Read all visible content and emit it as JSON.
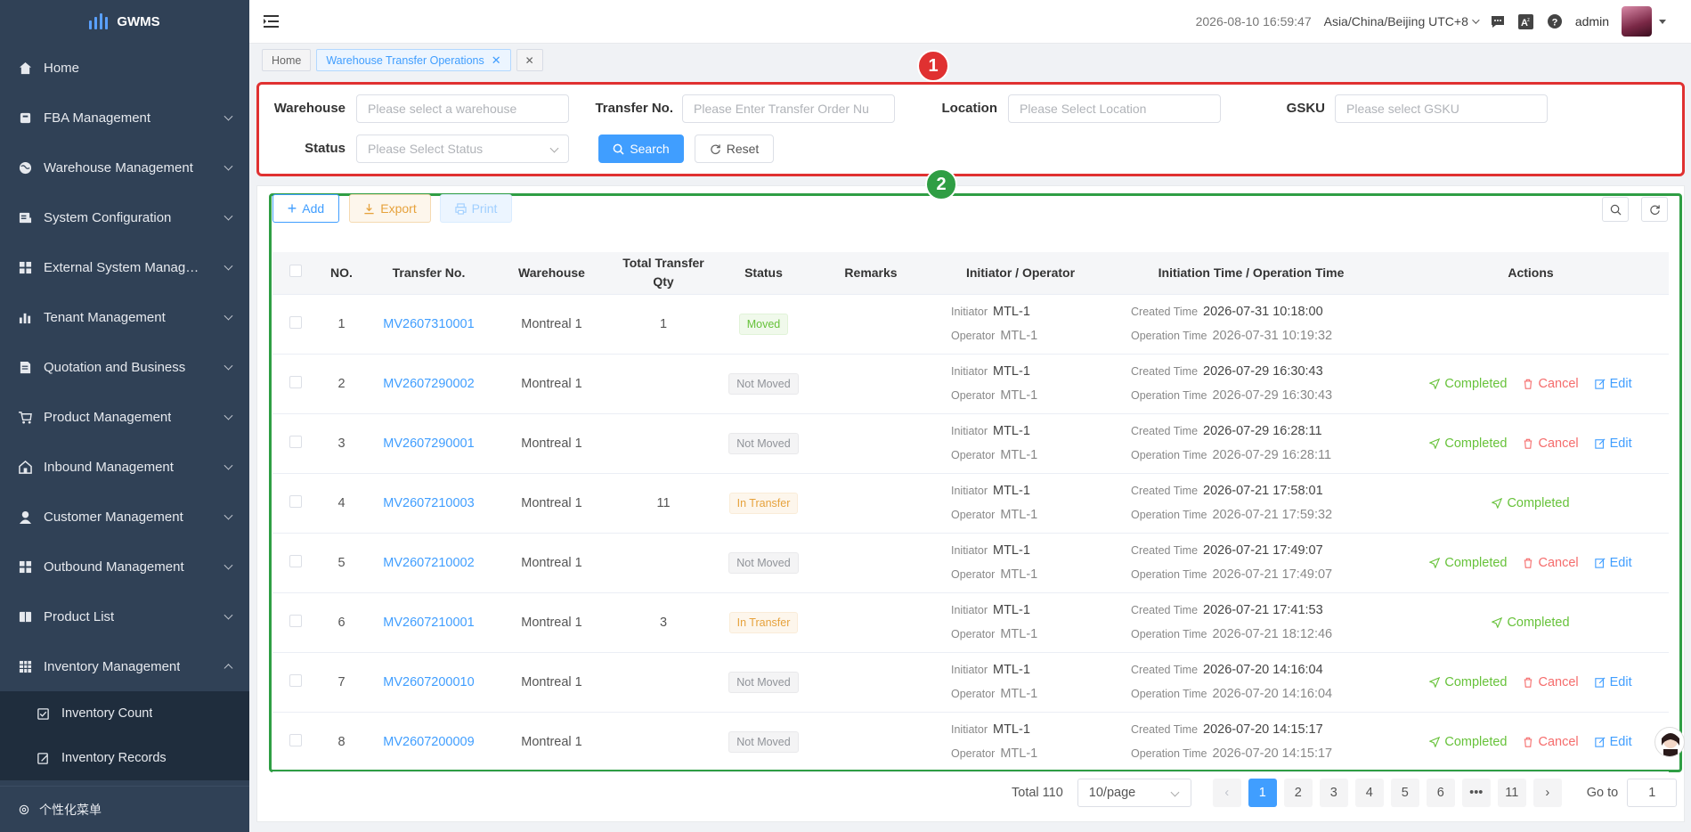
{
  "app": {
    "name": "GWMS"
  },
  "sidebar": {
    "items": [
      {
        "label": "Home",
        "icon": "home-icon",
        "expandable": false
      },
      {
        "label": "FBA Management",
        "icon": "fba-icon",
        "expandable": true
      },
      {
        "label": "Warehouse Management",
        "icon": "globe-icon",
        "expandable": true
      },
      {
        "label": "System Configuration",
        "icon": "config-icon",
        "expandable": true
      },
      {
        "label": "External System Manage...",
        "icon": "grid-icon",
        "expandable": true
      },
      {
        "label": "Tenant Management",
        "icon": "bar-chart-icon",
        "expandable": true
      },
      {
        "label": "Quotation and Business",
        "icon": "document-icon",
        "expandable": true
      },
      {
        "label": "Product Management",
        "icon": "cart-icon",
        "expandable": true
      },
      {
        "label": "Inbound Management",
        "icon": "home-outline-icon",
        "expandable": true
      },
      {
        "label": "Customer Management",
        "icon": "user-icon",
        "expandable": true
      },
      {
        "label": "Outbound Management",
        "icon": "grid-icon",
        "expandable": true
      },
      {
        "label": "Product List",
        "icon": "book-icon",
        "expandable": true
      },
      {
        "label": "Inventory Management",
        "icon": "table-icon",
        "expandable": true,
        "expanded": true
      }
    ],
    "subitems": [
      {
        "label": "Inventory Count",
        "icon": "checkbox-icon"
      },
      {
        "label": "Inventory Records",
        "icon": "edit-icon"
      }
    ],
    "footer": {
      "label": "个性化菜单",
      "icon": "gear-icon"
    }
  },
  "header": {
    "datetime": "2026-08-10 16:59:47",
    "timezone": "Asia/China/Beijing UTC+8",
    "user": "admin"
  },
  "tags": {
    "home": "Home",
    "active": "Warehouse Transfer Operations"
  },
  "annotations": {
    "search_badge": "1",
    "table_badge": "2"
  },
  "filters": {
    "warehouse": {
      "label": "Warehouse",
      "placeholder": "Please select a warehouse"
    },
    "transfer_no": {
      "label": "Transfer No.",
      "placeholder": "Please Enter Transfer Order Nu"
    },
    "location": {
      "label": "Location",
      "placeholder": "Please Select Location"
    },
    "gsku": {
      "label": "GSKU",
      "placeholder": "Please select GSKU"
    },
    "status": {
      "label": "Status",
      "placeholder": "Please Select Status"
    },
    "search_btn": "Search",
    "reset_btn": "Reset"
  },
  "toolbar": {
    "add": "Add",
    "export": "Export",
    "print": "Print"
  },
  "table": {
    "headers": {
      "no": "NO.",
      "transfer_no": "Transfer No.",
      "warehouse": "Warehouse",
      "total_qty_1": "Total Transfer",
      "total_qty_2": "Qty",
      "status": "Status",
      "remarks": "Remarks",
      "initiator": "Initiator / Operator",
      "time": "Initiation Time / Operation Time",
      "actions": "Actions"
    },
    "labels": {
      "initiator": "Initiator",
      "operator": "Operator",
      "created": "Created Time",
      "operation": "Operation Time",
      "completed": "Completed",
      "cancel": "Cancel",
      "edit": "Edit"
    },
    "rows": [
      {
        "no": "1",
        "transfer_no": "MV2607310001",
        "warehouse": "Montreal 1",
        "qty": "1",
        "status": "Moved",
        "status_type": "moved",
        "remarks": "",
        "initiator": "MTL-1",
        "operator": "MTL-1",
        "created": "2026-07-31 10:18:00",
        "operation": "2026-07-31 10:19:32",
        "actions": []
      },
      {
        "no": "2",
        "transfer_no": "MV2607290002",
        "warehouse": "Montreal 1",
        "qty": "",
        "status": "Not Moved",
        "status_type": "notmoved",
        "remarks": "",
        "initiator": "MTL-1",
        "operator": "MTL-1",
        "created": "2026-07-29 16:30:43",
        "operation": "2026-07-29 16:30:43",
        "actions": [
          "completed",
          "cancel",
          "edit"
        ]
      },
      {
        "no": "3",
        "transfer_no": "MV2607290001",
        "warehouse": "Montreal 1",
        "qty": "",
        "status": "Not Moved",
        "status_type": "notmoved",
        "remarks": "",
        "initiator": "MTL-1",
        "operator": "MTL-1",
        "created": "2026-07-29 16:28:11",
        "operation": "2026-07-29 16:28:11",
        "actions": [
          "completed",
          "cancel",
          "edit"
        ]
      },
      {
        "no": "4",
        "transfer_no": "MV2607210003",
        "warehouse": "Montreal 1",
        "qty": "11",
        "status": "In Transfer",
        "status_type": "transfer",
        "remarks": "",
        "initiator": "MTL-1",
        "operator": "MTL-1",
        "created": "2026-07-21 17:58:01",
        "operation": "2026-07-21 17:59:32",
        "actions": [
          "completed"
        ]
      },
      {
        "no": "5",
        "transfer_no": "MV2607210002",
        "warehouse": "Montreal 1",
        "qty": "",
        "status": "Not Moved",
        "status_type": "notmoved",
        "remarks": "",
        "initiator": "MTL-1",
        "operator": "MTL-1",
        "created": "2026-07-21 17:49:07",
        "operation": "2026-07-21 17:49:07",
        "actions": [
          "completed",
          "cancel",
          "edit"
        ]
      },
      {
        "no": "6",
        "transfer_no": "MV2607210001",
        "warehouse": "Montreal 1",
        "qty": "3",
        "status": "In Transfer",
        "status_type": "transfer",
        "remarks": "",
        "initiator": "MTL-1",
        "operator": "MTL-1",
        "created": "2026-07-21 17:41:53",
        "operation": "2026-07-21 18:12:46",
        "actions": [
          "completed"
        ]
      },
      {
        "no": "7",
        "transfer_no": "MV2607200010",
        "warehouse": "Montreal 1",
        "qty": "",
        "status": "Not Moved",
        "status_type": "notmoved",
        "remarks": "",
        "initiator": "MTL-1",
        "operator": "MTL-1",
        "created": "2026-07-20 14:16:04",
        "operation": "2026-07-20 14:16:04",
        "actions": [
          "completed",
          "cancel",
          "edit"
        ]
      },
      {
        "no": "8",
        "transfer_no": "MV2607200009",
        "warehouse": "Montreal 1",
        "qty": "",
        "status": "Not Moved",
        "status_type": "notmoved",
        "remarks": "",
        "initiator": "MTL-1",
        "operator": "MTL-1",
        "created": "2026-07-20 14:15:17",
        "operation": "2026-07-20 14:15:17",
        "actions": [
          "completed",
          "cancel",
          "edit"
        ]
      }
    ]
  },
  "pagination": {
    "total": "Total 110",
    "page_size": "10/page",
    "pages": [
      "1",
      "2",
      "3",
      "4",
      "5",
      "6",
      "•••",
      "11"
    ],
    "current": "1",
    "goto_label": "Go to",
    "goto_value": "1"
  },
  "colors": {
    "sidebar": "#304156",
    "primary": "#409eff",
    "success": "#67c23a",
    "danger": "#f56c6c",
    "warning": "#e6a23c",
    "annotation_red": "#e03131",
    "annotation_green": "#2f9e44"
  }
}
